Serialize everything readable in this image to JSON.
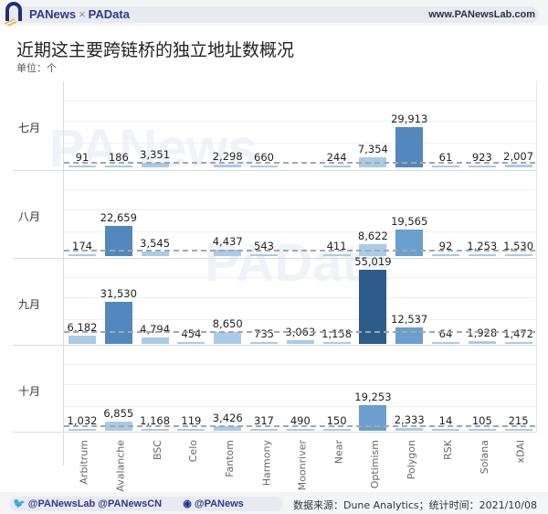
{
  "header": {
    "brand_left": "PANews",
    "brand_sep": "×",
    "brand_right": "PAData",
    "site": "www.PANewsLab.com"
  },
  "chart_data": {
    "type": "bar",
    "title": "近期这主要跨链桥的独立地址数概况",
    "unit_label": "单位：个",
    "xlabel": "",
    "ylabel": "",
    "categories": [
      "Arbitrum",
      "Avalanche",
      "BSC",
      "Celo",
      "Fantom",
      "Harmony",
      "Moonriver",
      "Near",
      "Optimism",
      "Polygon",
      "RSK",
      "Solana",
      "xDAI"
    ],
    "rows": [
      "七月",
      "八月",
      "九月",
      "十月"
    ],
    "series": [
      {
        "name": "七月",
        "values": [
          91,
          186,
          3351,
          0,
          2298,
          660,
          0,
          244,
          7354,
          29913,
          61,
          923,
          2007
        ],
        "labels": [
          "91",
          "186",
          "3,351",
          "",
          "2,298",
          "660",
          "",
          "244",
          "7,354",
          "29,913",
          "61",
          "923",
          "2,007"
        ]
      },
      {
        "name": "八月",
        "values": [
          174,
          22659,
          3545,
          0,
          4437,
          543,
          0,
          411,
          8622,
          19565,
          92,
          1253,
          1530
        ],
        "labels": [
          "174",
          "22,659",
          "3,545",
          "",
          "4,437",
          "543",
          "",
          "411",
          "8,622",
          "19,565",
          "92",
          "1,253",
          "1,530"
        ]
      },
      {
        "name": "九月",
        "values": [
          6182,
          31530,
          4794,
          454,
          8650,
          735,
          3063,
          1158,
          55019,
          12537,
          64,
          1928,
          1472
        ],
        "labels": [
          "6,182",
          "31,530",
          "4,794",
          "454",
          "8,650",
          "735",
          "3,063",
          "1,158",
          "55,019",
          "12,537",
          "64",
          "1,928",
          "1,472"
        ]
      },
      {
        "name": "十月",
        "values": [
          1032,
          6855,
          1168,
          119,
          3426,
          317,
          490,
          150,
          19253,
          2333,
          14,
          105,
          215
        ],
        "labels": [
          "1,032",
          "6,855",
          "1,168",
          "119",
          "3,426",
          "317",
          "490",
          "150",
          "19,253",
          "2,333",
          "14",
          "105",
          "215"
        ]
      }
    ],
    "layout": {
      "panels": "small multiples by month (rows)",
      "reference_line": "dashed average line per row",
      "grid": true,
      "legend": "none"
    }
  },
  "footer": {
    "twitter": "@PANewsLab  @PANewsCN",
    "weibo": "@PANews",
    "source": "数据来源：Dune Analytics；统计时间：2021/10/08"
  },
  "colors": {
    "light": "#a9cbe6",
    "mid": "#6a9fcf",
    "dark": "#2c5b8c",
    "brand": "#2a3b8f"
  }
}
